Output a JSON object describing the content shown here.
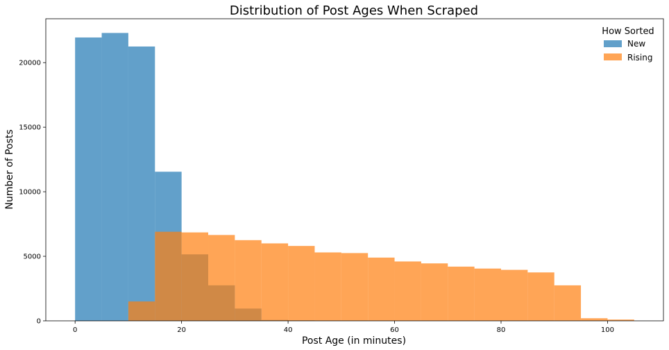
{
  "chart_data": {
    "type": "bar",
    "title": "Distribution of Post Ages When Scraped",
    "xlabel": "Post Age (in minutes)",
    "ylabel": "Number of Posts",
    "xlim": [
      -5.5,
      110.5
    ],
    "ylim": [
      0,
      23400
    ],
    "x_ticks": [
      0,
      20,
      40,
      60,
      80,
      100
    ],
    "y_ticks": [
      0,
      5000,
      10000,
      15000,
      20000
    ],
    "grid": false,
    "legend": {
      "title": "How Sorted",
      "placement": "top-right"
    },
    "series": [
      {
        "name": "New",
        "color": "#1f77b4",
        "opacity": 0.7,
        "bin_edges": [
          0,
          5,
          10,
          15,
          20,
          25,
          30,
          35,
          40,
          45,
          50,
          55,
          60,
          65,
          70,
          75,
          80,
          85,
          90,
          95
        ],
        "values": [
          21950,
          22300,
          21250,
          11550,
          5150,
          2750,
          950,
          70,
          40,
          25,
          15,
          10,
          8,
          5,
          5,
          4,
          3,
          3,
          2
        ]
      },
      {
        "name": "Rising",
        "color": "#ff7f0e",
        "opacity": 0.7,
        "bin_edges": [
          10,
          15,
          20,
          25,
          30,
          35,
          40,
          45,
          50,
          55,
          60,
          65,
          70,
          75,
          80,
          85,
          90,
          95,
          100,
          105
        ],
        "values": [
          1500,
          6900,
          6850,
          6650,
          6250,
          6000,
          5800,
          5300,
          5250,
          4900,
          4600,
          4450,
          4200,
          4050,
          3950,
          3750,
          2750,
          200,
          100
        ]
      }
    ]
  }
}
